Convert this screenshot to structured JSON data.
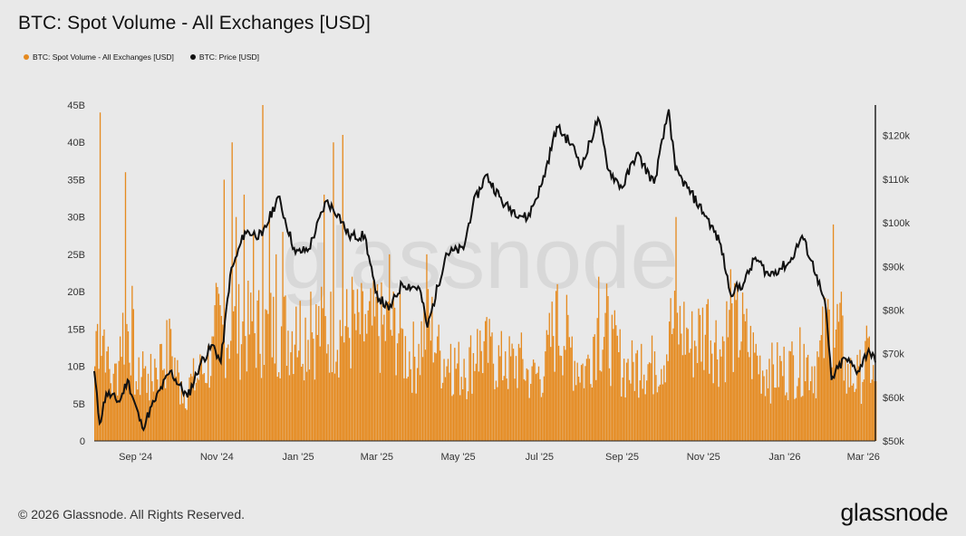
{
  "title": "BTC: Spot Volume - All Exchanges [USD]",
  "legend": {
    "volume_label": "BTC: Spot Volume - All Exchanges [USD]",
    "price_label": "BTC: Price [USD]"
  },
  "watermark": "glassnode",
  "footer": "© 2026 Glassnode. All Rights Reserved.",
  "brand": "glassnode",
  "colors": {
    "volume": "#e58a1f",
    "price": "#111111",
    "background": "#e9e9e9"
  },
  "chart_data": {
    "type": "bar+line",
    "title": "BTC: Spot Volume - All Exchanges [USD]",
    "x_ticks": [
      "Sep '24",
      "Nov '24",
      "Jan '25",
      "Mar '25",
      "May '25",
      "Jul '25",
      "Sep '25",
      "Nov '25",
      "Jan '26",
      "Mar '26"
    ],
    "x_range": [
      "2024-08-01",
      "2026-03-10"
    ],
    "y_left": {
      "ticks": [
        "0",
        "5B",
        "10B",
        "15B",
        "20B",
        "25B",
        "30B",
        "35B",
        "40B",
        "45B"
      ],
      "range": [
        0,
        45
      ]
    },
    "y_right": {
      "ticks": [
        "$50k",
        "$60k",
        "$70k",
        "$80k",
        "$90k",
        "$100k",
        "$110k",
        "$120k"
      ],
      "range": [
        50,
        127
      ]
    },
    "series": [
      {
        "name": "BTC: Spot Volume - All Exchanges [USD]",
        "type": "bar",
        "unit": "billion USD",
        "points": [
          [
            "2024-08-01",
            10
          ],
          [
            "2024-08-05",
            44
          ],
          [
            "2024-08-10",
            12
          ],
          [
            "2024-08-15",
            9
          ],
          [
            "2024-08-20",
            14
          ],
          [
            "2024-08-24",
            36
          ],
          [
            "2024-09-01",
            8
          ],
          [
            "2024-09-06",
            12
          ],
          [
            "2024-09-10",
            9
          ],
          [
            "2024-09-15",
            11
          ],
          [
            "2024-09-20",
            13
          ],
          [
            "2024-09-27",
            15
          ],
          [
            "2024-10-05",
            8
          ],
          [
            "2024-10-12",
            9
          ],
          [
            "2024-10-20",
            11
          ],
          [
            "2024-10-29",
            14
          ],
          [
            "2024-11-06",
            35
          ],
          [
            "2024-11-12",
            40
          ],
          [
            "2024-11-15",
            30
          ],
          [
            "2024-11-21",
            33
          ],
          [
            "2024-11-28",
            28
          ],
          [
            "2024-12-05",
            45
          ],
          [
            "2024-12-10",
            30
          ],
          [
            "2024-12-15",
            25
          ],
          [
            "2024-12-20",
            28
          ],
          [
            "2024-12-30",
            18
          ],
          [
            "2025-01-10",
            20
          ],
          [
            "2025-01-20",
            33
          ],
          [
            "2025-01-27",
            40
          ],
          [
            "2025-02-03",
            41
          ],
          [
            "2025-02-10",
            22
          ],
          [
            "2025-02-20",
            17
          ],
          [
            "2025-03-01",
            21
          ],
          [
            "2025-03-10",
            25
          ],
          [
            "2025-03-20",
            15
          ],
          [
            "2025-04-01",
            13
          ],
          [
            "2025-04-07",
            25
          ],
          [
            "2025-04-15",
            14
          ],
          [
            "2025-04-25",
            13
          ],
          [
            "2025-05-05",
            11
          ],
          [
            "2025-05-15",
            15
          ],
          [
            "2025-05-25",
            14
          ],
          [
            "2025-06-05",
            12
          ],
          [
            "2025-06-15",
            13
          ],
          [
            "2025-06-25",
            10
          ],
          [
            "2025-07-05",
            12
          ],
          [
            "2025-07-14",
            21
          ],
          [
            "2025-07-25",
            14
          ],
          [
            "2025-08-05",
            11
          ],
          [
            "2025-08-14",
            22
          ],
          [
            "2025-08-25",
            15
          ],
          [
            "2025-09-05",
            11
          ],
          [
            "2025-09-15",
            13
          ],
          [
            "2025-09-25",
            12
          ],
          [
            "2025-10-06",
            16
          ],
          [
            "2025-10-11",
            30
          ],
          [
            "2025-10-20",
            15
          ],
          [
            "2025-11-04",
            19
          ],
          [
            "2025-11-15",
            14
          ],
          [
            "2025-11-21",
            23
          ],
          [
            "2025-12-01",
            17
          ],
          [
            "2025-12-10",
            13
          ],
          [
            "2025-12-20",
            11
          ],
          [
            "2026-01-05",
            12
          ],
          [
            "2026-01-15",
            13
          ],
          [
            "2026-01-25",
            12
          ],
          [
            "2026-02-02",
            19
          ],
          [
            "2026-02-06",
            29
          ],
          [
            "2026-02-15",
            11
          ],
          [
            "2026-02-25",
            10
          ],
          [
            "2026-03-05",
            14
          ],
          [
            "2026-03-10",
            8
          ]
        ]
      },
      {
        "name": "BTC: Price [USD]",
        "type": "line",
        "unit": "thousand USD",
        "points": [
          [
            "2024-08-01",
            66
          ],
          [
            "2024-08-05",
            54
          ],
          [
            "2024-08-10",
            61
          ],
          [
            "2024-08-20",
            59
          ],
          [
            "2024-08-26",
            64
          ],
          [
            "2024-09-06",
            53
          ],
          [
            "2024-09-15",
            59
          ],
          [
            "2024-09-27",
            66
          ],
          [
            "2024-10-10",
            60
          ],
          [
            "2024-10-20",
            68
          ],
          [
            "2024-10-29",
            72
          ],
          [
            "2024-11-04",
            68
          ],
          [
            "2024-11-11",
            88
          ],
          [
            "2024-11-22",
            98
          ],
          [
            "2024-12-05",
            97
          ],
          [
            "2024-12-17",
            106
          ],
          [
            "2024-12-30",
            93
          ],
          [
            "2025-01-09",
            94
          ],
          [
            "2025-01-22",
            105
          ],
          [
            "2025-01-31",
            102
          ],
          [
            "2025-02-08",
            97
          ],
          [
            "2025-02-20",
            97
          ],
          [
            "2025-02-28",
            84
          ],
          [
            "2025-03-10",
            80
          ],
          [
            "2025-03-20",
            86
          ],
          [
            "2025-04-02",
            85
          ],
          [
            "2025-04-08",
            76
          ],
          [
            "2025-04-22",
            93
          ],
          [
            "2025-05-05",
            94
          ],
          [
            "2025-05-12",
            104
          ],
          [
            "2025-05-22",
            111
          ],
          [
            "2025-06-05",
            104
          ],
          [
            "2025-06-22",
            101
          ],
          [
            "2025-07-03",
            109
          ],
          [
            "2025-07-14",
            122
          ],
          [
            "2025-07-25",
            118
          ],
          [
            "2025-08-02",
            113
          ],
          [
            "2025-08-14",
            124
          ],
          [
            "2025-08-22",
            112
          ],
          [
            "2025-09-01",
            108
          ],
          [
            "2025-09-12",
            116
          ],
          [
            "2025-09-25",
            109
          ],
          [
            "2025-10-06",
            126
          ],
          [
            "2025-10-11",
            112
          ],
          [
            "2025-10-20",
            108
          ],
          [
            "2025-11-04",
            101
          ],
          [
            "2025-11-14",
            95
          ],
          [
            "2025-11-21",
            84
          ],
          [
            "2025-12-01",
            86
          ],
          [
            "2025-12-10",
            92
          ],
          [
            "2025-12-20",
            88
          ],
          [
            "2026-01-05",
            91
          ],
          [
            "2026-01-14",
            97
          ],
          [
            "2026-01-25",
            88
          ],
          [
            "2026-02-01",
            80
          ],
          [
            "2026-02-05",
            64
          ],
          [
            "2026-02-15",
            69
          ],
          [
            "2026-02-25",
            66
          ],
          [
            "2026-03-05",
            71
          ],
          [
            "2026-03-10",
            68
          ]
        ]
      }
    ]
  }
}
